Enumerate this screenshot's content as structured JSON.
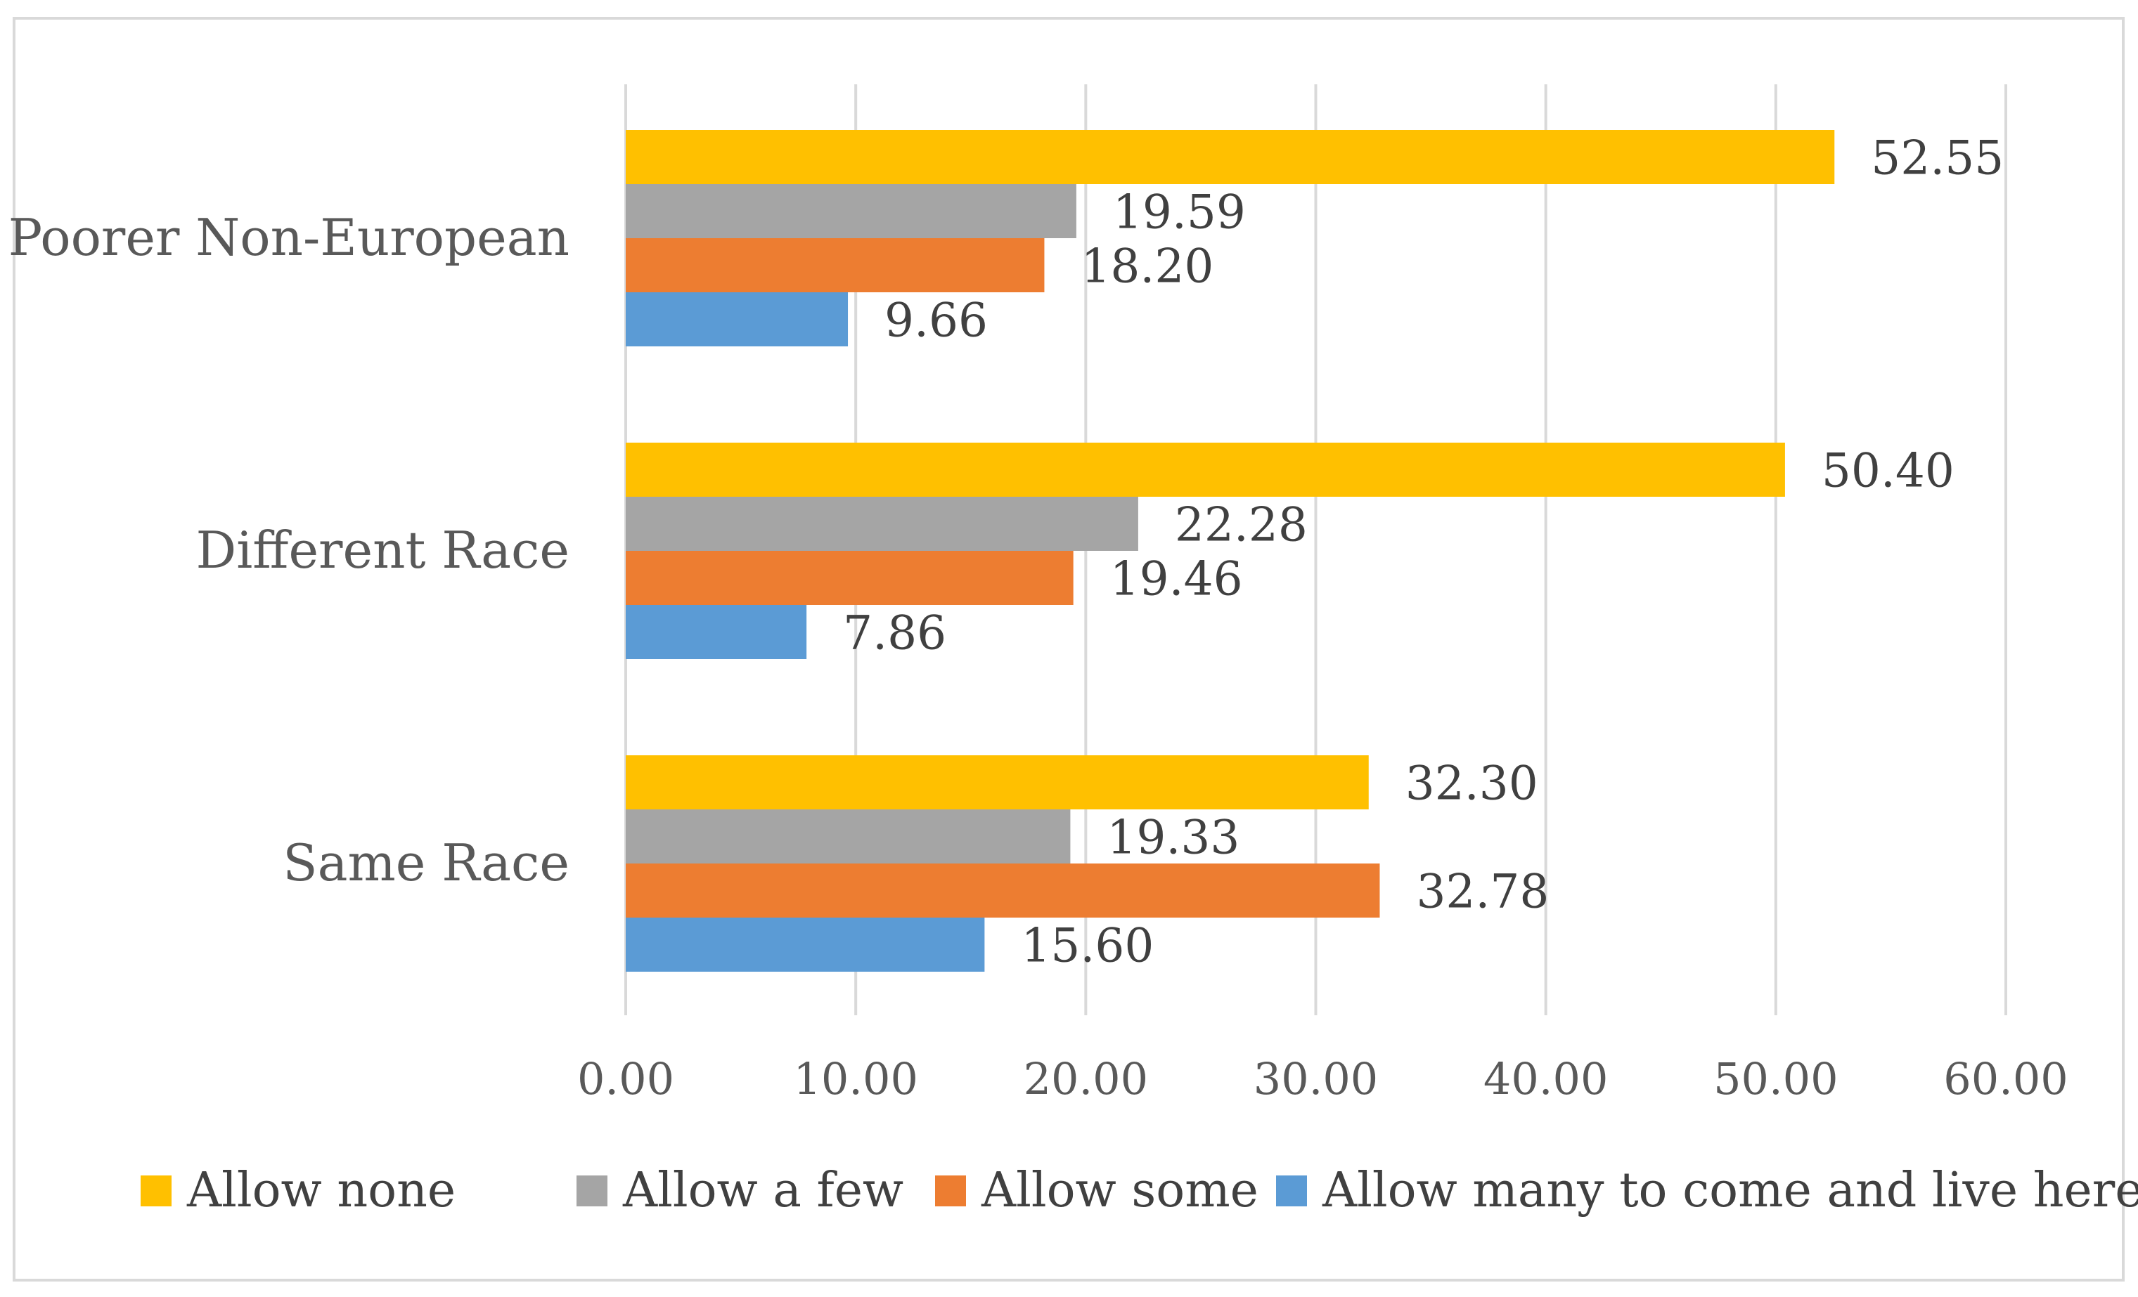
{
  "chart_data": {
    "type": "bar",
    "orientation": "horizontal",
    "categories": [
      "Poorer Non-European",
      "Different Race",
      "Same Race"
    ],
    "series": [
      {
        "name": "Allow none",
        "color": "#FFC000",
        "values": [
          52.55,
          50.4,
          32.3
        ],
        "labels": [
          "52.55",
          "50.40",
          "32.30"
        ]
      },
      {
        "name": "Allow a few",
        "color": "#A5A5A5",
        "values": [
          19.59,
          22.28,
          19.33
        ],
        "labels": [
          "19.59",
          "22.28",
          "19.33"
        ]
      },
      {
        "name": "Allow some",
        "color": "#ED7D31",
        "values": [
          18.2,
          19.46,
          32.78
        ],
        "labels": [
          "18.20",
          "19.46",
          "32.78"
        ]
      },
      {
        "name": "Allow many to come and live here",
        "color": "#5B9BD5",
        "values": [
          9.66,
          7.86,
          15.6
        ],
        "labels": [
          "9.66",
          "7.86",
          "15.60"
        ]
      }
    ],
    "xlim": [
      0,
      60
    ],
    "xticks": [
      "0.00",
      "10.00",
      "20.00",
      "30.00",
      "40.00",
      "50.00",
      "60.00"
    ],
    "grid": "vertical",
    "legend_position": "bottom"
  }
}
